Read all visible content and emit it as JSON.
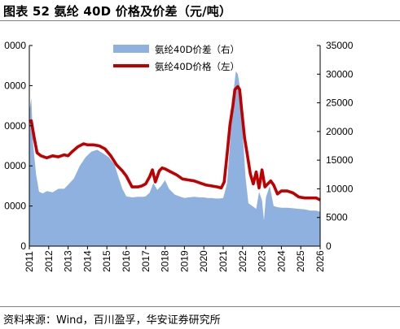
{
  "header": {
    "title": "图表 52 氨纶 40D 价格及价差（元/吨）"
  },
  "footer": {
    "source": "资料来源：Wind，百川盈孚，华安证券研究所"
  },
  "colors": {
    "spread_fill": "#8fb1df",
    "price_line": "#c00000",
    "axis": "#000000",
    "rule": "#7f7f7f"
  },
  "chart_data": {
    "type": "area",
    "title": "",
    "grid": false,
    "legend_position": "top-center",
    "x_ticks": [
      "2011",
      "2012",
      "2013",
      "2014",
      "2015",
      "2016",
      "2017",
      "2018",
      "2019",
      "2020",
      "2021",
      "2022",
      "2023",
      "2024",
      "2025",
      "2026"
    ],
    "left_axis": {
      "tick_labels": [
        "0000",
        "0000",
        "0000",
        "0000",
        "0000",
        "0"
      ],
      "ylim": [
        0,
        100000
      ]
    },
    "right_axis": {
      "tick_labels": [
        "35000",
        "30000",
        "25000",
        "20000",
        "15000",
        "10000",
        "5000",
        "0"
      ],
      "ylim": [
        0,
        35000
      ]
    },
    "series": [
      {
        "name": "氨纶40D价差（右）",
        "type": "area",
        "axis": "right",
        "x": [
          2011.0,
          2011.1,
          2011.2,
          2011.35,
          2011.5,
          2011.7,
          2011.9,
          2012.2,
          2012.5,
          2012.8,
          2013.0,
          2013.3,
          2013.6,
          2013.9,
          2014.2,
          2014.5,
          2014.8,
          2015.1,
          2015.4,
          2015.6,
          2015.8,
          2016.0,
          2016.3,
          2016.6,
          2016.9,
          2017.0,
          2017.2,
          2017.4,
          2017.6,
          2017.8,
          2018.0,
          2018.2,
          2018.5,
          2018.8,
          2019.0,
          2019.2,
          2019.5,
          2019.8,
          2020.0,
          2020.2,
          2020.4,
          2020.6,
          2020.8,
          2021.0,
          2021.2,
          2021.35,
          2021.5,
          2021.65,
          2021.75,
          2021.85,
          2022.0,
          2022.15,
          2022.3,
          2022.5,
          2022.7,
          2022.85,
          2023.0,
          2023.1,
          2023.2,
          2023.4,
          2023.6,
          2023.8,
          2024.0,
          2024.3,
          2024.6,
          2024.9,
          2025.2,
          2025.5,
          2025.8,
          2026.0
        ],
        "values": [
          23500,
          25800,
          17500,
          12500,
          9500,
          9200,
          9600,
          9400,
          10000,
          10000,
          10700,
          11800,
          14000,
          15500,
          16500,
          16800,
          16200,
          15500,
          14200,
          12000,
          10000,
          8700,
          8500,
          8600,
          8600,
          8700,
          9300,
          11000,
          9800,
          10500,
          11500,
          10000,
          9000,
          8600,
          8400,
          8500,
          8600,
          8500,
          8500,
          8400,
          8400,
          8300,
          8300,
          8400,
          11000,
          18000,
          26000,
          30500,
          30000,
          28000,
          20000,
          12000,
          7500,
          7000,
          6500,
          9500,
          8000,
          4500,
          8500,
          10500,
          7000,
          6800,
          6700,
          6700,
          6600,
          6500,
          6400,
          6200,
          6200,
          6000
        ]
      },
      {
        "name": "氨纶40D价格（左）",
        "type": "line",
        "axis": "left",
        "x": [
          2011.0,
          2011.1,
          2011.25,
          2011.4,
          2011.6,
          2011.9,
          2012.2,
          2012.5,
          2012.8,
          2013.0,
          2013.2,
          2013.5,
          2013.8,
          2014.0,
          2014.3,
          2014.6,
          2014.9,
          2015.2,
          2015.5,
          2015.8,
          2016.0,
          2016.3,
          2016.6,
          2016.8,
          2017.0,
          2017.2,
          2017.35,
          2017.5,
          2017.7,
          2017.85,
          2018.0,
          2018.3,
          2018.6,
          2018.9,
          2019.2,
          2019.5,
          2019.8,
          2020.1,
          2020.4,
          2020.7,
          2020.9,
          2021.05,
          2021.2,
          2021.35,
          2021.5,
          2021.6,
          2021.75,
          2021.85,
          2021.95,
          2022.1,
          2022.25,
          2022.4,
          2022.55,
          2022.7,
          2022.85,
          2023.0,
          2023.15,
          2023.3,
          2023.45,
          2023.6,
          2023.8,
          2024.0,
          2024.3,
          2024.6,
          2024.9,
          2025.2,
          2025.5,
          2025.8,
          2026.0
        ],
        "values": [
          62000,
          62500,
          54000,
          46500,
          45000,
          44000,
          45000,
          44500,
          45500,
          45000,
          47000,
          49500,
          51000,
          50500,
          50500,
          50000,
          48500,
          45000,
          40500,
          37500,
          35000,
          29500,
          29500,
          30000,
          31000,
          34500,
          38000,
          32000,
          37500,
          39000,
          38500,
          37000,
          35500,
          33500,
          33000,
          32500,
          31500,
          30500,
          30000,
          29500,
          29000,
          32000,
          46000,
          60500,
          70000,
          78000,
          79500,
          78000,
          68000,
          54000,
          45000,
          36000,
          31000,
          37000,
          29000,
          38000,
          29500,
          31000,
          32500,
          30500,
          26000,
          27500,
          27500,
          26500,
          24500,
          24000,
          24000,
          24000,
          23000
        ]
      }
    ]
  }
}
